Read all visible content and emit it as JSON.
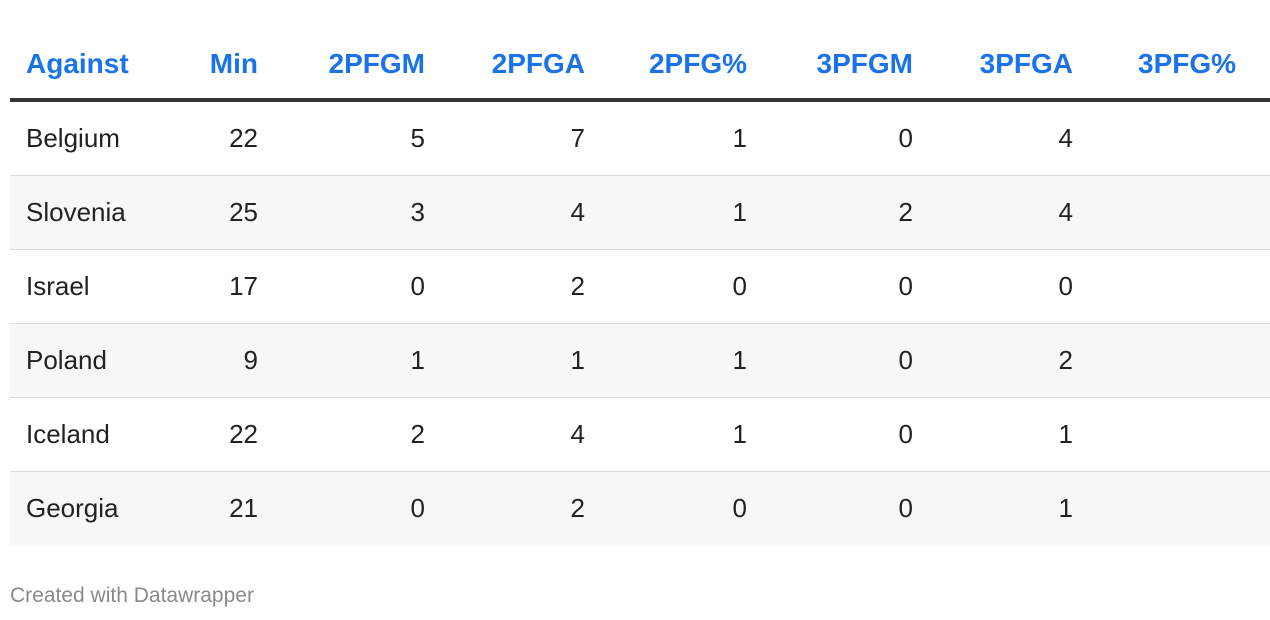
{
  "chart_data": {
    "type": "table",
    "columns": [
      "Against",
      "Min",
      "2PFGM",
      "2PFGA",
      "2PFG%",
      "3PFGM",
      "3PFGA",
      "3PFG%"
    ],
    "rows": [
      [
        "Belgium",
        "22",
        "5",
        "7",
        "1",
        "0",
        "4",
        ""
      ],
      [
        "Slovenia",
        "25",
        "3",
        "4",
        "1",
        "2",
        "4",
        ""
      ],
      [
        "Israel",
        "17",
        "0",
        "2",
        "0",
        "0",
        "0",
        ""
      ],
      [
        "Poland",
        "9",
        "1",
        "1",
        "1",
        "0",
        "2",
        ""
      ],
      [
        "Iceland",
        "22",
        "2",
        "4",
        "1",
        "0",
        "1",
        ""
      ],
      [
        "Georgia",
        "21",
        "0",
        "2",
        "0",
        "0",
        "1",
        ""
      ]
    ],
    "header_color": "#1a73e8",
    "zebra_color": "#f7f7f7"
  },
  "footer": {
    "credit": "Created with Datawrapper"
  }
}
